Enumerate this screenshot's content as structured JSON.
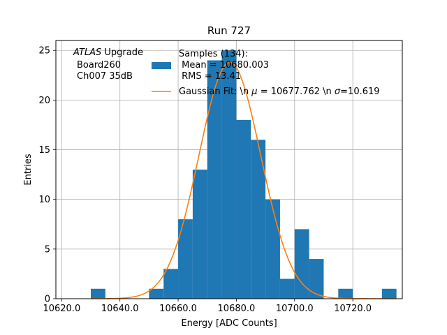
{
  "chart_data": {
    "type": "bar",
    "title": "Run 727",
    "xlabel": "Energy [ADC Counts]",
    "ylabel": "Entries",
    "xlim": [
      10618,
      10737
    ],
    "ylim": [
      0,
      26
    ],
    "grid": true,
    "x_ticks": [
      10620,
      10640,
      10660,
      10680,
      10700,
      10720
    ],
    "x_tick_labels": [
      "10620.0",
      "10640.0",
      "10660.0",
      "10680.0",
      "10700.0",
      "10720.0"
    ],
    "y_ticks": [
      0,
      5,
      10,
      15,
      20,
      25
    ],
    "y_tick_labels": [
      "0",
      "5",
      "10",
      "15",
      "20",
      "25"
    ],
    "histogram": {
      "bin_width": 5,
      "color": "#1f77b4",
      "bins": [
        {
          "start": 10630,
          "count": 1
        },
        {
          "start": 10650,
          "count": 1
        },
        {
          "start": 10655,
          "count": 3
        },
        {
          "start": 10660,
          "count": 8
        },
        {
          "start": 10665,
          "count": 13
        },
        {
          "start": 10670,
          "count": 24
        },
        {
          "start": 10675,
          "count": 25
        },
        {
          "start": 10680,
          "count": 18
        },
        {
          "start": 10685,
          "count": 16
        },
        {
          "start": 10690,
          "count": 10
        },
        {
          "start": 10695,
          "count": 2
        },
        {
          "start": 10700,
          "count": 7
        },
        {
          "start": 10705,
          "count": 4
        },
        {
          "start": 10715,
          "count": 1
        },
        {
          "start": 10730,
          "count": 1
        }
      ]
    },
    "fit": {
      "type": "gaussian",
      "mu": 10677.762,
      "sigma": 10.619,
      "amplitude": 23.8,
      "x_range": [
        10630,
        10735
      ],
      "color": "#ff7f0e"
    },
    "annotation": {
      "atlas": "ATLAS",
      "upgrade": " Upgrade",
      "line2": "Board260",
      "line3": "Ch007 35dB"
    },
    "legend": {
      "placement": "top-right",
      "hist_label": [
        "Samples (134):",
        " Mean = 10680.003",
        " RMS = 13.41"
      ],
      "fit_label_pre": "Gaussian Fit: \\n ",
      "fit_mu": "μ",
      "fit_label_mid": " = 10677.762 \\n ",
      "fit_sigma": "σ",
      "fit_label_post": "=10.619"
    }
  }
}
